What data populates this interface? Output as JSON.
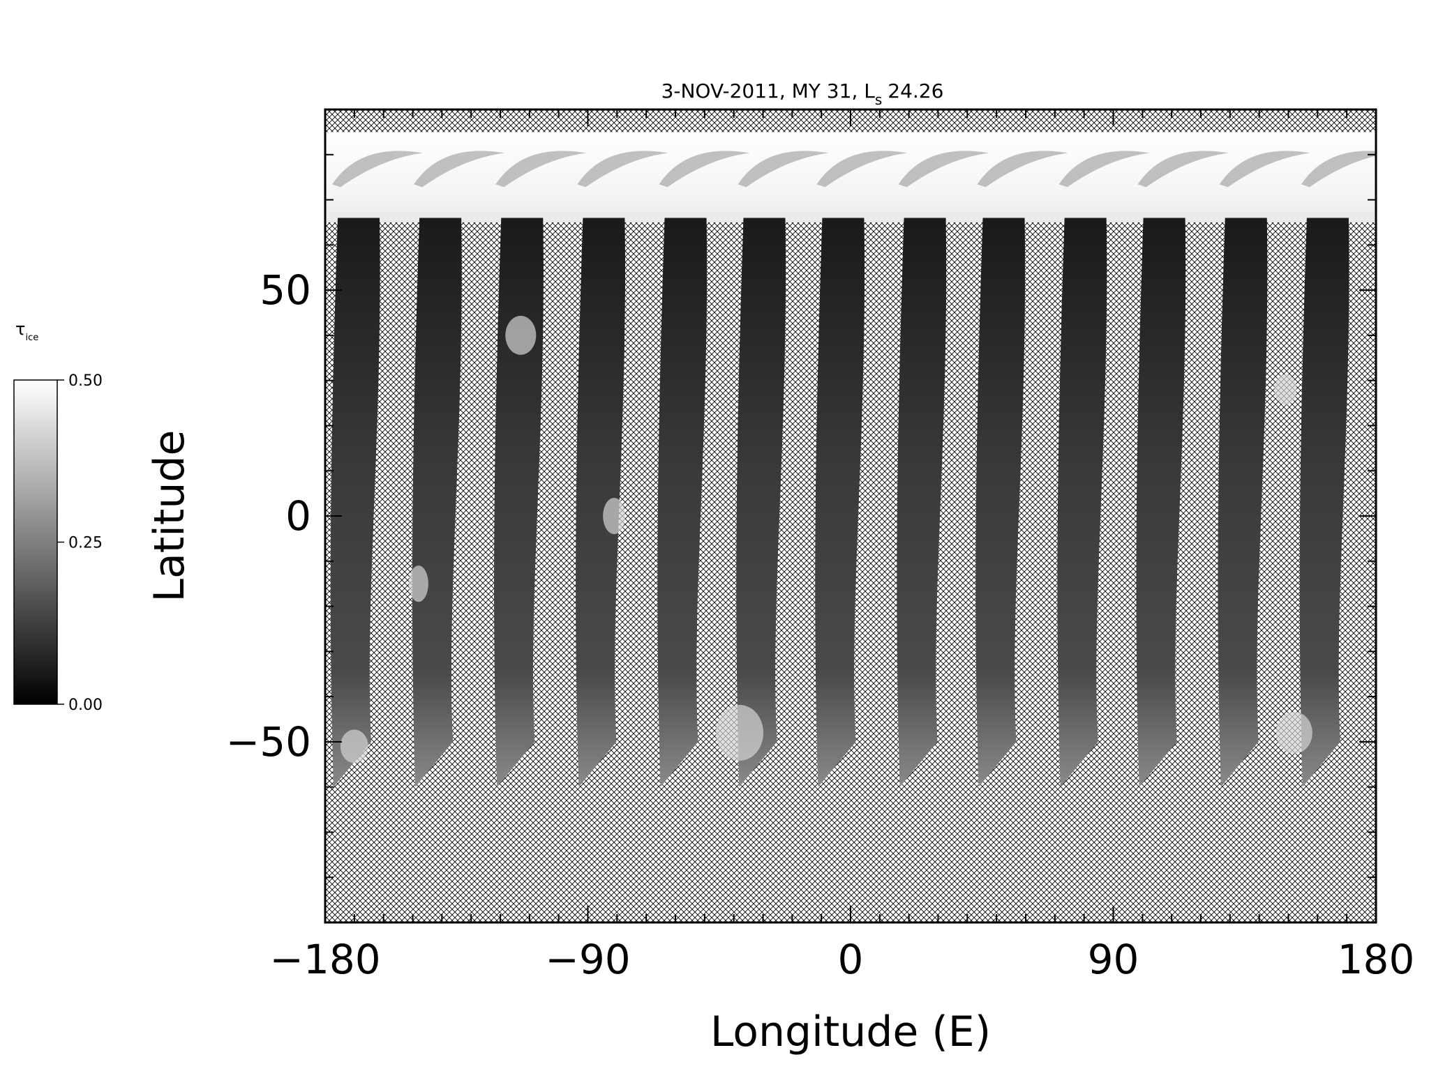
{
  "chart_data": {
    "type": "heatmap",
    "title": "3-NOV-2011, MY 31,  L",
    "title_subscript": "s",
    "title_value": "24.26",
    "xlabel": "Longitude (E)",
    "ylabel": "Latitude",
    "xlim": [
      -180,
      180
    ],
    "ylim": [
      -90,
      90
    ],
    "x_ticks": [
      -180,
      -90,
      0,
      90,
      180
    ],
    "x_tick_labels": [
      "−180",
      "−90",
      "0",
      "90",
      "180"
    ],
    "y_ticks": [
      -50,
      0,
      50
    ],
    "y_tick_labels": [
      "−50",
      "0",
      "50"
    ],
    "x_minor_step": 10,
    "y_minor_step": 10,
    "grid": false,
    "no_data_pattern": "crosshatch",
    "polar_cap_lat_range": [
      65,
      85
    ],
    "swath_lat_range": [
      -60,
      66
    ],
    "swath_start_lons": [
      -180,
      -152,
      -124,
      -96,
      -68,
      -41,
      -14,
      14,
      41,
      69,
      96,
      124,
      152
    ],
    "colorbar": {
      "label": "τ",
      "label_subscript": "ice",
      "min": 0.0,
      "max": 0.5,
      "tick_values": [
        0.0,
        0.25,
        0.5
      ],
      "tick_labels": [
        "0.00",
        "0.25",
        "0.50"
      ],
      "colormap": "grayscale",
      "color_min": "#000000",
      "color_max": "#ffffff"
    }
  }
}
